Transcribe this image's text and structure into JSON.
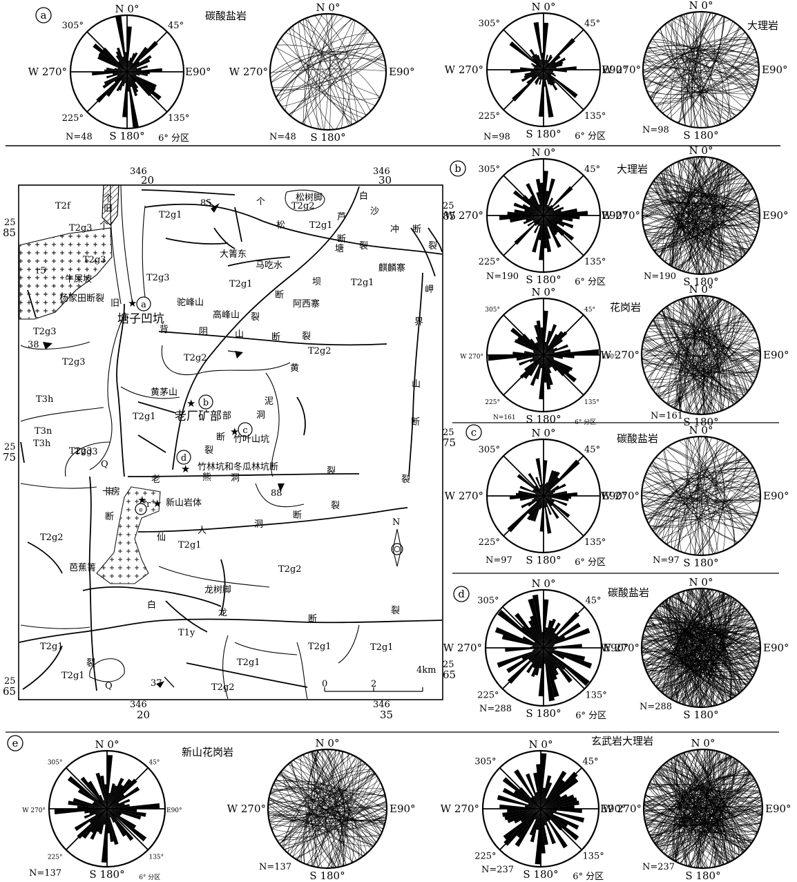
{
  "panels": {
    "a": {
      "mark": "a",
      "left_title": "碳酸盐岩",
      "right_title": "大理岩",
      "left_n": "N=48",
      "right_n": "N=98"
    },
    "b": {
      "mark": "b",
      "top_title": "大理岩",
      "bottom_title": "花岗岩",
      "top_n": "N=190",
      "bottom_n": "N=161"
    },
    "c": {
      "mark": "c",
      "title": "碳酸盐岩",
      "n": "N=97"
    },
    "d": {
      "mark": "d",
      "title": "碳酸盐岩",
      "n": "N=288"
    },
    "e": {
      "mark": "e",
      "left_title": "新山花岗岩",
      "right_title": "玄武岩大理岩",
      "left_n": "N=137",
      "right_n": "N=237"
    }
  },
  "compass": {
    "n": "N 0°",
    "s": "S 180°",
    "w": "W 270°",
    "e": "E90°",
    "ne": "45°",
    "nw": "305°",
    "se": "135°",
    "sw": "225°",
    "sector": "6° 分区"
  },
  "map": {
    "top_coords": [
      {
        "a": "346",
        "b": "20"
      },
      {
        "a": "346",
        "b": "30"
      }
    ],
    "bottom_coords": [
      {
        "a": "346",
        "b": "20"
      },
      {
        "a": "346",
        "b": "35"
      }
    ],
    "left_coords": [
      {
        "a": "25",
        "b": "85"
      },
      {
        "a": "25",
        "b": "75"
      },
      {
        "a": "25",
        "b": "65"
      }
    ],
    "right_coords": [
      {
        "a": "25",
        "b": "85"
      },
      {
        "a": "25",
        "b": "75"
      },
      {
        "a": "25",
        "b": "65"
      }
    ],
    "scale": {
      "zero": "0",
      "two": "2",
      "four": "4km"
    },
    "north": "N",
    "place_names": [
      "松树脚",
      "大箐东",
      "马吃水",
      "麒麟寨",
      "阿西寨",
      "牛屎坡",
      "杨家田断裂",
      "驼峰山",
      "高峰山",
      "塘子凹坑",
      "黄茅山",
      "老厂矿部",
      "竹叶山坑",
      "竹林坑和冬瓜林坑断",
      "新山岩体",
      "芭蕉箐",
      "龙树脚",
      "卡房"
    ],
    "fault_chars": [
      "个",
      "旧",
      "个",
      "旧",
      "个",
      "松",
      "塘",
      "芦",
      "断",
      "裂",
      "白",
      "沙",
      "冲",
      "断",
      "裂",
      "坝",
      "断",
      "裂",
      "背",
      "阴",
      "山",
      "断",
      "裂",
      "黄",
      "泥",
      "洞",
      "断",
      "裂",
      "岬",
      "界",
      "山",
      "断",
      "裂",
      "老",
      "熊",
      "洞",
      "裂",
      "卡",
      "断",
      "仙",
      "人",
      "洞",
      "断",
      "裂",
      "白",
      "龙",
      "断",
      "裂",
      "裂",
      "部"
    ],
    "strata": [
      "T2f",
      "T2g3",
      "T2g3",
      "T2g3",
      "T2g1",
      "T2g2",
      "T2g1",
      "T2g1",
      "T2g1",
      "T2g3",
      "T2g3",
      "T2g3",
      "T2g2",
      "T2g2",
      "T3h",
      "T3n",
      "T3h",
      "T2g3",
      "T2g1",
      "Q",
      "T2g2",
      "T2g1",
      "T2g2",
      "T1y",
      "T2g1",
      "T2g1",
      "T2g1",
      "T2g1",
      "T2g1",
      "Q",
      "T2g2",
      "r5",
      "r"
    ],
    "dips": [
      "85",
      "38",
      "88",
      "37"
    ]
  }
}
